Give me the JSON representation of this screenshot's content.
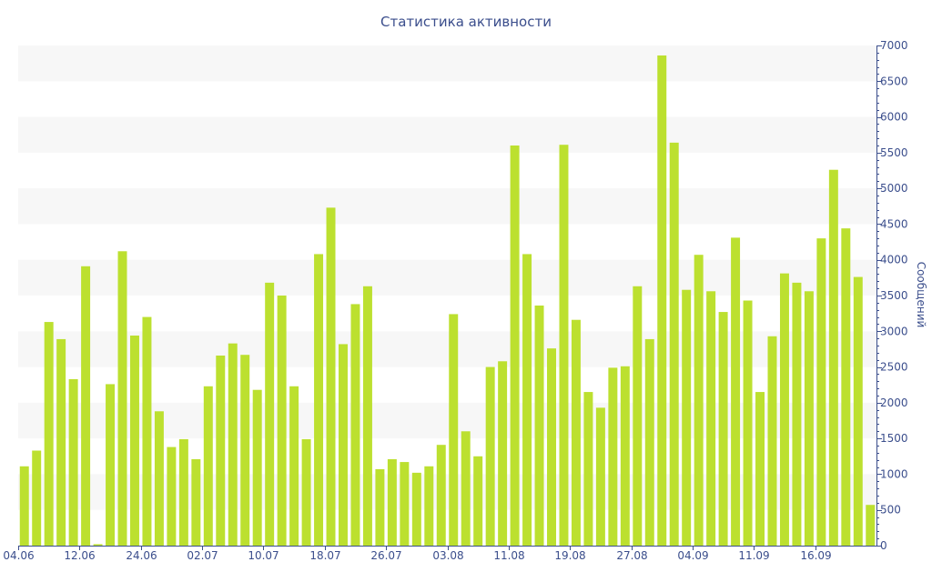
{
  "chart_data": {
    "type": "bar",
    "title": "Статистика активности",
    "xlabel": "",
    "ylabel": "Сообщений",
    "ylim": [
      0,
      7000
    ],
    "y_axis_side": "right",
    "y_ticks": [
      0,
      500,
      1000,
      1500,
      2000,
      2500,
      3000,
      3500,
      4000,
      4500,
      5000,
      5500,
      6000,
      6500,
      7000
    ],
    "x_tick_labels": [
      {
        "label": "04.06",
        "index": 0
      },
      {
        "label": "12.06",
        "index": 5
      },
      {
        "label": "24.06",
        "index": 10
      },
      {
        "label": "02.07",
        "index": 15
      },
      {
        "label": "10.07",
        "index": 20
      },
      {
        "label": "18.07",
        "index": 25
      },
      {
        "label": "26.07",
        "index": 30
      },
      {
        "label": "03.08",
        "index": 35
      },
      {
        "label": "11.08",
        "index": 40
      },
      {
        "label": "19.08",
        "index": 45
      },
      {
        "label": "27.08",
        "index": 50
      },
      {
        "label": "04.09",
        "index": 55
      },
      {
        "label": "11.09",
        "index": 60
      },
      {
        "label": "16.09",
        "index": 65
      }
    ],
    "values": [
      1110,
      1330,
      3130,
      2890,
      2330,
      3910,
      20,
      2260,
      4120,
      2940,
      3200,
      1880,
      1380,
      1490,
      1210,
      2230,
      2660,
      2830,
      2670,
      2180,
      3680,
      3500,
      2230,
      1490,
      4080,
      4730,
      2820,
      3380,
      3630,
      1070,
      1210,
      1170,
      1020,
      1110,
      1410,
      3240,
      1600,
      1250,
      2500,
      2580,
      5600,
      4080,
      3360,
      2760,
      5610,
      3160,
      2150,
      1930,
      2490,
      2510,
      3630,
      2890,
      6860,
      5640,
      3580,
      4070,
      3560,
      3270,
      4310,
      3430,
      2150,
      2930,
      3810,
      3680,
      3560,
      4300,
      5260,
      4440,
      3760,
      570
    ],
    "grid": true,
    "grid_style": "alternating horizontal bands",
    "legend": "none",
    "colors": {
      "bar": "#bce02f",
      "band": "#f7f7f7",
      "axis": "#3b4e8c",
      "text": "#3b4e8c"
    }
  }
}
